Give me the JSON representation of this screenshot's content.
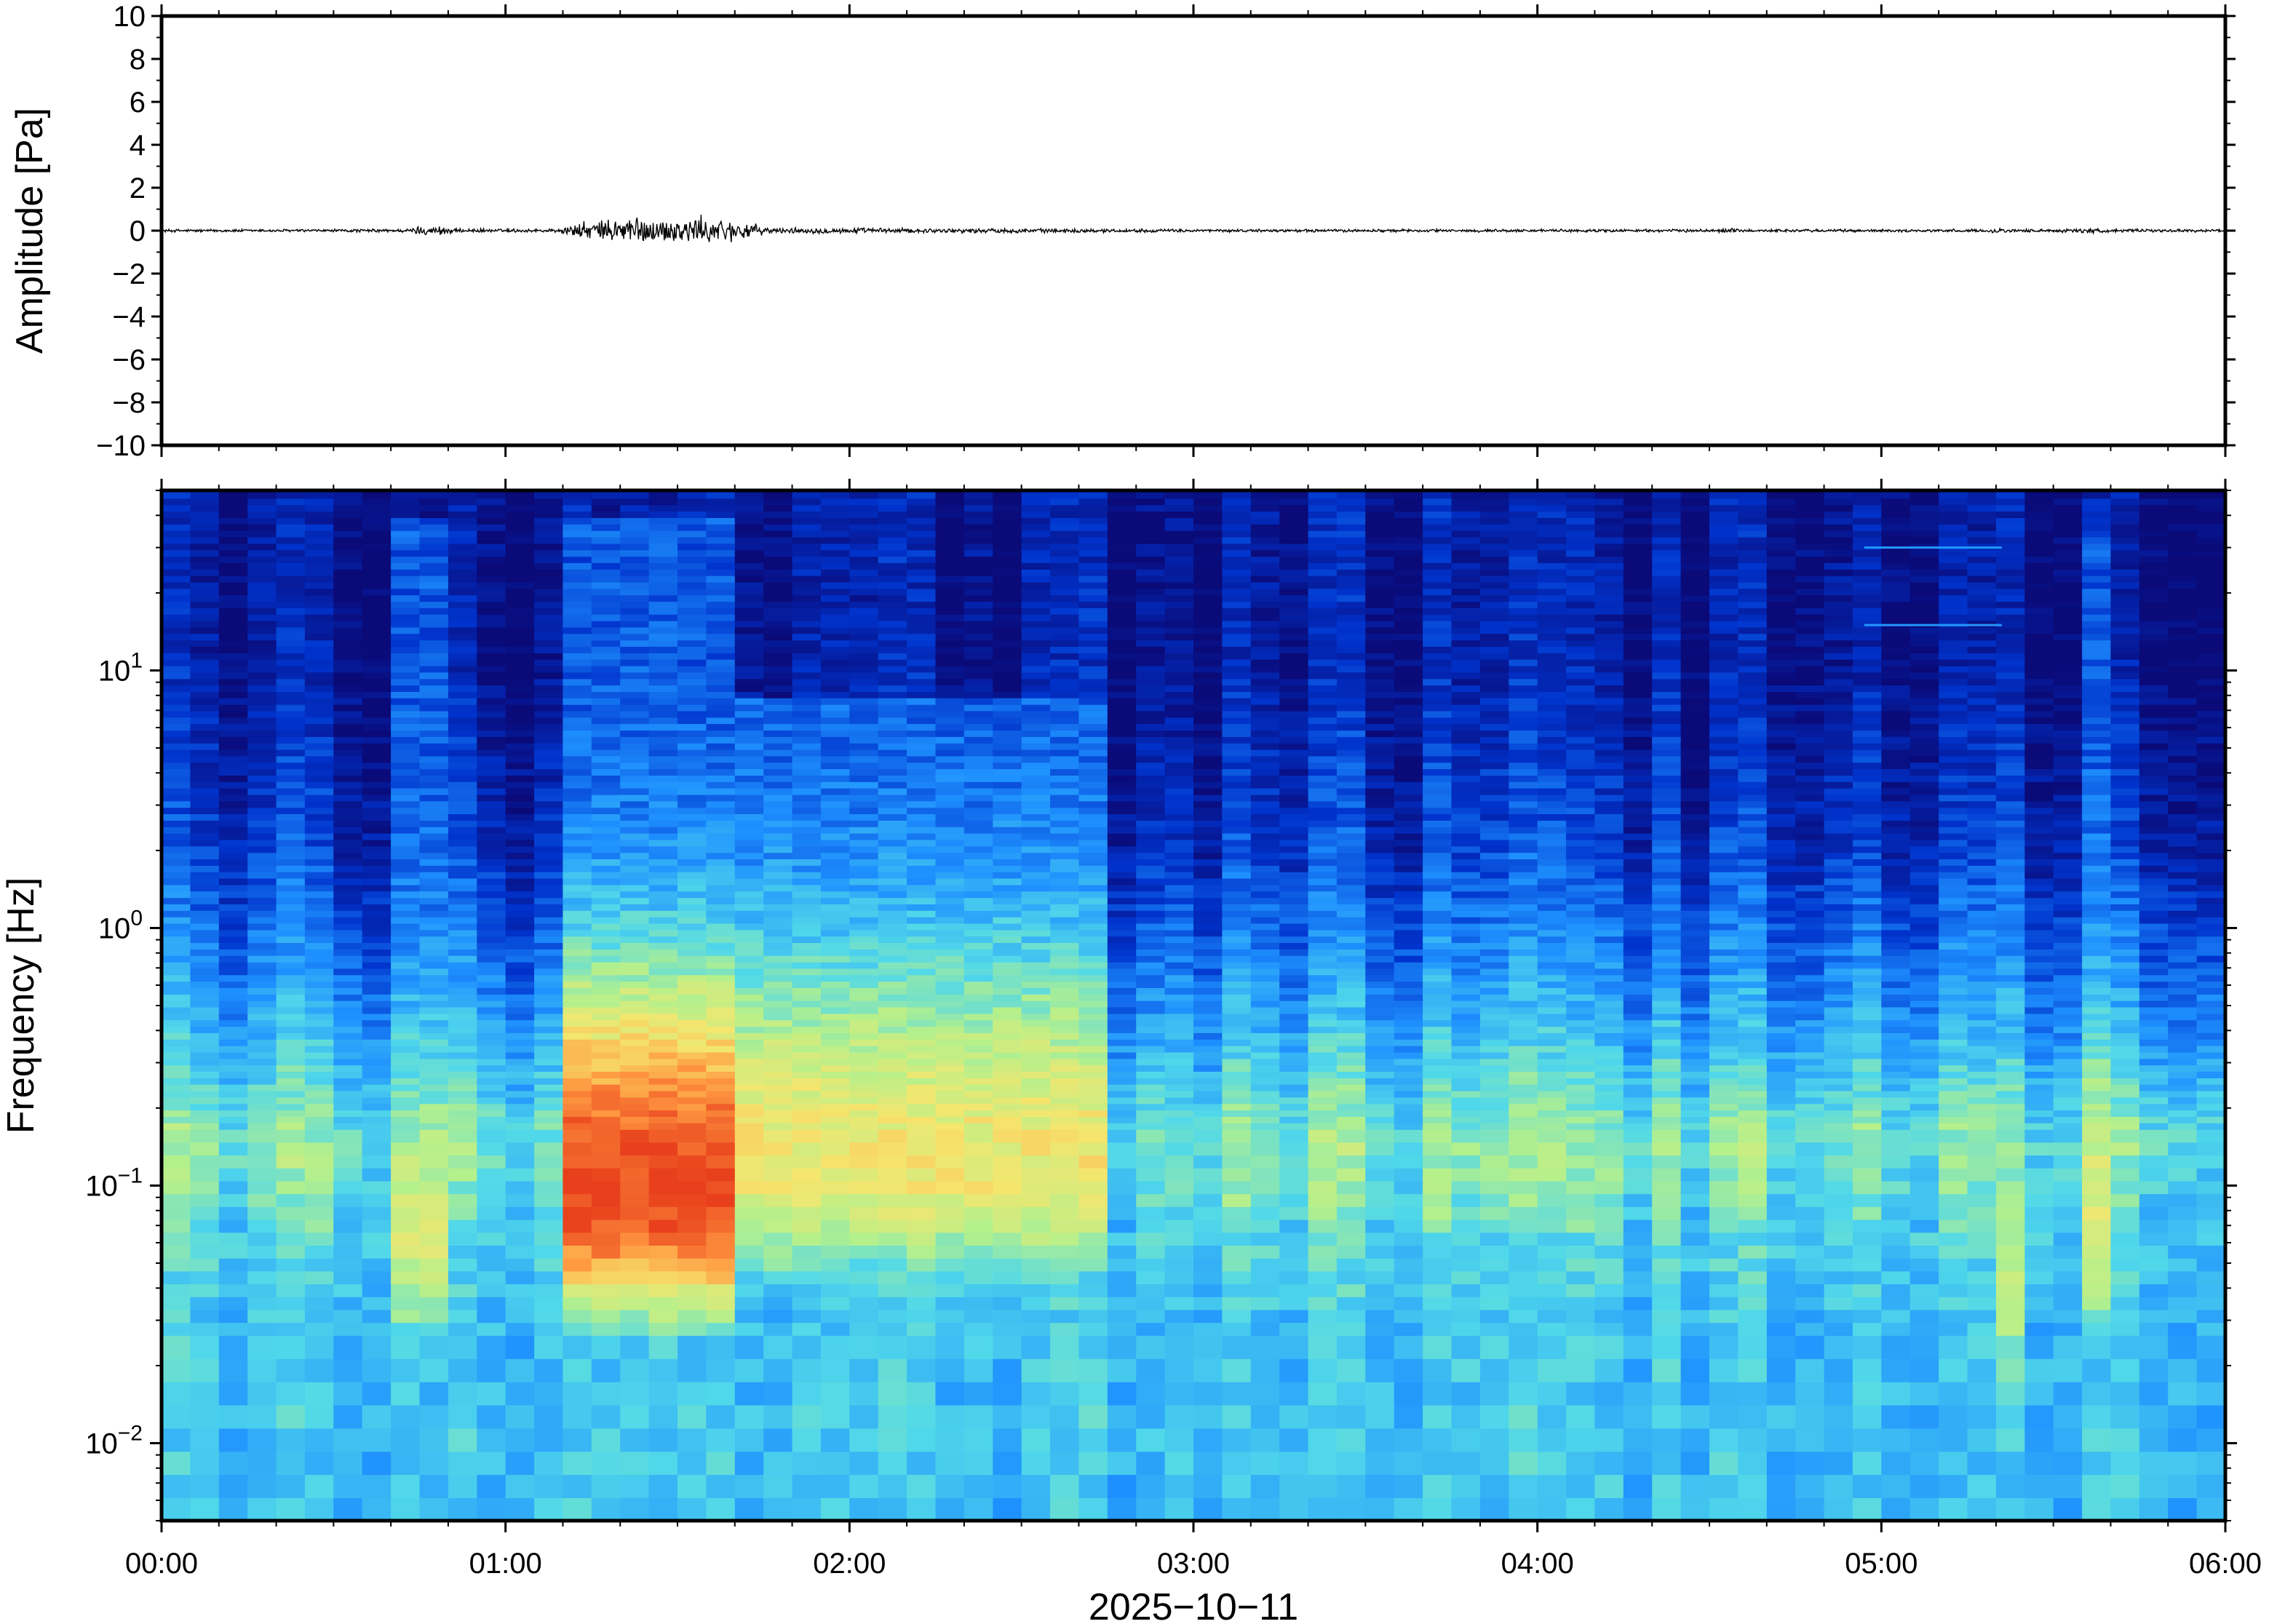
{
  "chart_data": [
    {
      "type": "line",
      "title": "",
      "ylabel": "Amplitude [Pa]",
      "ylim": [
        -10,
        10
      ],
      "yticks": [
        -10,
        -8,
        -6,
        -4,
        -2,
        0,
        2,
        4,
        6,
        8,
        10
      ],
      "ytick_labels": [
        "−10",
        "−8",
        "−6",
        "−4",
        "−2",
        "0",
        "2",
        "4",
        "6",
        "8",
        "10"
      ],
      "xlim_hours": [
        0,
        6
      ],
      "series": [
        {
          "x_hours": [
            0.0,
            0.25,
            0.5,
            0.72,
            0.75,
            0.8,
            0.82,
            0.85,
            1.0,
            1.15,
            1.2,
            1.25,
            1.3,
            1.33,
            1.35,
            1.38,
            1.4,
            1.45,
            1.5,
            1.55,
            1.6,
            1.65,
            1.7,
            1.75,
            1.8,
            2.0,
            2.25,
            2.5,
            2.75,
            3.0,
            3.5,
            4.0,
            4.5,
            4.57,
            4.6,
            5.0,
            5.3,
            5.33,
            5.4,
            5.55,
            5.6,
            5.65,
            5.7,
            6.0
          ],
          "envelope_pa": [
            0.08,
            0.08,
            0.08,
            0.1,
            0.25,
            0.2,
            0.35,
            0.1,
            0.1,
            0.1,
            0.4,
            0.5,
            0.6,
            0.7,
            1.05,
            0.8,
            0.7,
            0.6,
            0.7,
            0.8,
            0.7,
            0.6,
            0.5,
            0.2,
            0.15,
            0.15,
            0.12,
            0.12,
            0.1,
            0.08,
            0.08,
            0.08,
            0.08,
            0.15,
            0.08,
            0.08,
            0.08,
            0.15,
            0.08,
            0.1,
            0.15,
            0.1,
            0.08,
            0.08
          ]
        }
      ]
    },
    {
      "type": "heatmap",
      "title": "",
      "ylabel": "Frequency [Hz]",
      "xlabel": "2025−10−11",
      "y_scale": "log",
      "ylim_hz": [
        0.005,
        50
      ],
      "yticks_hz": [
        0.01,
        0.1,
        1,
        10
      ],
      "ytick_labels": [
        {
          "base": "10",
          "exp": "−2"
        },
        {
          "base": "10",
          "exp": "−1"
        },
        {
          "base": "10",
          "exp": "0"
        },
        {
          "base": "10",
          "exp": "1"
        }
      ],
      "xlim_hours": [
        0,
        6
      ],
      "xtick_labels": [
        "00:00",
        "01:00",
        "02:00",
        "03:00",
        "04:00",
        "05:00",
        "06:00"
      ],
      "colormap": "jet",
      "colormap_stops": [
        "#0a0a78",
        "#0033cc",
        "#1e90ff",
        "#50d8ea",
        "#b4f08c",
        "#f5e66e",
        "#ff9640",
        "#e8401c"
      ],
      "noise_floor_hz": [
        0.03,
        0.06,
        0.15,
        0.45,
        2.0,
        12.0
      ],
      "noise_floor_level": [
        0.38,
        0.42,
        0.5,
        0.32,
        0.14,
        0.05
      ],
      "events": [
        {
          "start_h": 1.2,
          "end_h": 1.7,
          "level": 0.92,
          "peak_hz": 0.09,
          "top_hz": 40
        },
        {
          "start_h": 1.7,
          "end_h": 2.75,
          "level": 0.62,
          "peak_hz": 0.12,
          "top_hz": 8
        },
        {
          "start_h": 0.7,
          "end_h": 0.8,
          "level": 0.55,
          "peak_hz": 0.06,
          "top_hz": 40
        },
        {
          "start_h": 5.55,
          "end_h": 5.65,
          "level": 0.58,
          "peak_hz": 0.07,
          "top_hz": 35
        },
        {
          "start_h": 5.3,
          "end_h": 5.45,
          "level": 0.5,
          "peak_hz": 0.04,
          "top_hz": 2
        }
      ],
      "lines": [
        {
          "start_h": 4.95,
          "end_h": 5.35,
          "hz": 30
        },
        {
          "start_h": 4.95,
          "end_h": 5.35,
          "hz": 15
        }
      ]
    }
  ]
}
